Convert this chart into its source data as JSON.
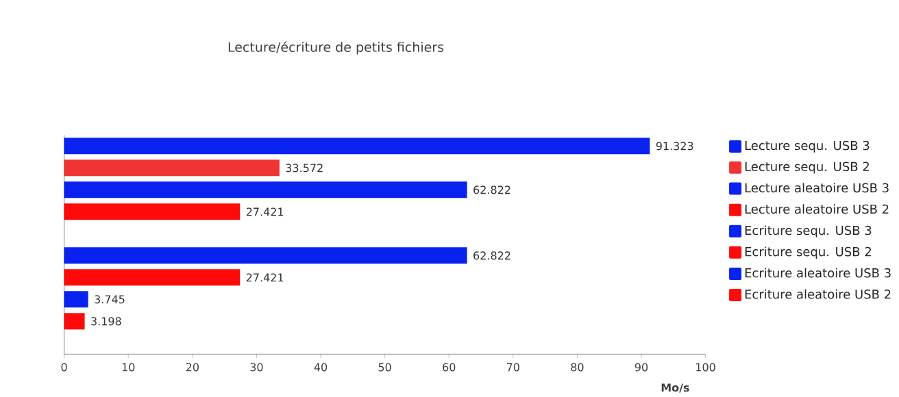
{
  "chart_data": {
    "type": "bar",
    "orientation": "horizontal",
    "subtitle": "Lecture/écriture de petits fichiers",
    "xlabel": "Mo/s",
    "categories": [
      null,
      null
    ],
    "series": [
      {
        "name": "Lecture sequ. USB 3",
        "color": "#0a22f0",
        "values": [
          91.323,
          null
        ]
      },
      {
        "name": "Lecture sequ. USB 2",
        "color": "#f03434",
        "values": [
          33.572,
          null
        ]
      },
      {
        "name": "Lecture aleatoire USB 3",
        "color": "#0a22f0",
        "values": [
          62.822,
          null
        ]
      },
      {
        "name": "Lecture aleatoire USB 2",
        "color": "#ff0a0a",
        "values": [
          27.421,
          null
        ]
      },
      {
        "name": "Ecriture sequ. USB 3",
        "color": "#0a22f0",
        "values": [
          null,
          62.822
        ]
      },
      {
        "name": "Ecriture sequ. USB 2",
        "color": "#ff0a0a",
        "values": [
          null,
          27.421
        ]
      },
      {
        "name": "Ecriture aleatoire USB 3",
        "color": "#0a22f0",
        "values": [
          null,
          3.745
        ]
      },
      {
        "name": "Ecriture aleatoire USB 2",
        "color": "#ff0a0a",
        "values": [
          null,
          3.198
        ]
      }
    ],
    "xlim": [
      0,
      100
    ],
    "xticks": [
      0,
      10,
      20,
      30,
      40,
      50,
      60,
      70,
      80,
      90,
      100
    ],
    "data_labels": true,
    "legend": "right",
    "grid": false
  }
}
